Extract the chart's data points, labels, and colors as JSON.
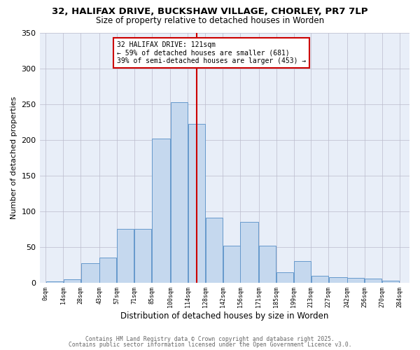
{
  "title": "32, HALIFAX DRIVE, BUCKSHAW VILLAGE, CHORLEY, PR7 7LP",
  "subtitle": "Size of property relative to detached houses in Worden",
  "xlabel": "Distribution of detached houses by size in Worden",
  "ylabel": "Number of detached properties",
  "background_color": "#ffffff",
  "plot_bg_color": "#e8eef8",
  "bar_color": "#c5d8ee",
  "bar_edge_color": "#6699cc",
  "grid_color": "#bbbbcc",
  "vline_x": 121,
  "vline_color": "#cc0000",
  "annotation_text": "32 HALIFAX DRIVE: 121sqm\n← 59% of detached houses are smaller (681)\n39% of semi-detached houses are larger (453) →",
  "annotation_box_color": "#cc0000",
  "bin_edges": [
    0,
    14,
    28,
    43,
    57,
    71,
    85,
    100,
    114,
    128,
    142,
    156,
    171,
    185,
    199,
    213,
    227,
    242,
    256,
    270,
    284
  ],
  "bar_heights": [
    2,
    5,
    27,
    35,
    75,
    75,
    202,
    253,
    222,
    91,
    52,
    85,
    52,
    15,
    30,
    10,
    8,
    7,
    6,
    3
  ],
  "ylim": [
    0,
    350
  ],
  "yticks": [
    0,
    50,
    100,
    150,
    200,
    250,
    300,
    350
  ],
  "tick_labels": [
    "0sqm",
    "14sqm",
    "28sqm",
    "43sqm",
    "57sqm",
    "71sqm",
    "85sqm",
    "100sqm",
    "114sqm",
    "128sqm",
    "142sqm",
    "156sqm",
    "171sqm",
    "185sqm",
    "199sqm",
    "213sqm",
    "227sqm",
    "242sqm",
    "256sqm",
    "270sqm",
    "284sqm"
  ],
  "footer_line1": "Contains HM Land Registry data © Crown copyright and database right 2025.",
  "footer_line2": "Contains public sector information licensed under the Open Government Licence v3.0."
}
